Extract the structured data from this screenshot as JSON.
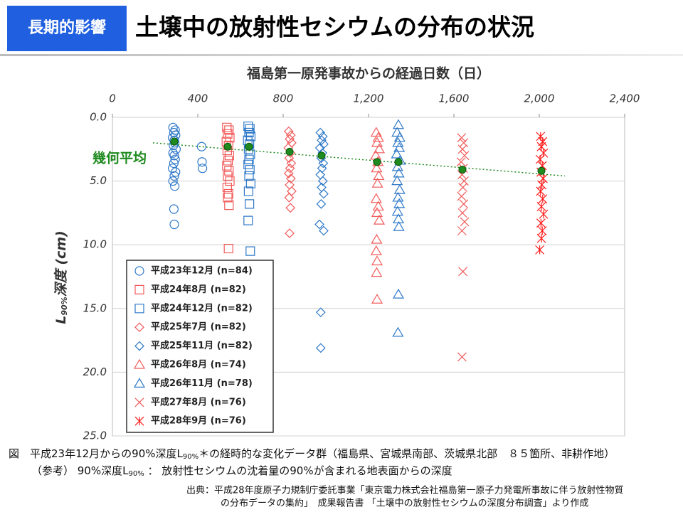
{
  "header": {
    "tag": "長期的影響",
    "title": "土壌中の放射性セシウムの分布の状況"
  },
  "chart_data": {
    "type": "scatter",
    "x_label": "福島第一原発事故からの経過日数（日）",
    "y_label": {
      "main": "L",
      "sub": "90%",
      "rest": "深度 (cm)"
    },
    "xlim": [
      0,
      2400
    ],
    "xticks": [
      0,
      400,
      800,
      {
        "value": 1200,
        "label": "1,200"
      },
      {
        "value": 1600,
        "label": "1,600"
      },
      {
        "value": 2000,
        "label": "2,000"
      },
      {
        "value": 2400,
        "label": "2,400"
      }
    ],
    "ylim": [
      0,
      25
    ],
    "y_inverted": true,
    "yticks": [
      {
        "value": 0,
        "label": "0.0"
      },
      {
        "value": 5,
        "label": "5.0"
      },
      {
        "value": 10,
        "label": "10.0"
      },
      {
        "value": 15,
        "label": "15.0"
      },
      {
        "value": 20,
        "label": "20.0"
      },
      {
        "value": 25,
        "label": "25.0"
      }
    ],
    "grid": true,
    "legend": "lower left",
    "series": [
      {
        "name": "平成23年12月 (n=84)",
        "color": "#2e78c8",
        "marker": "circle",
        "x": [
          284,
          294,
          288,
          296,
          282,
          290,
          292,
          286,
          298,
          284,
          290,
          294,
          288,
          282,
          296,
          290,
          284,
          292,
          288,
          290,
          418,
          420,
          422
        ],
        "values": [
          0.8,
          1.0,
          1.2,
          1.4,
          1.6,
          1.8,
          2.0,
          2.2,
          2.5,
          2.8,
          3.0,
          3.3,
          3.6,
          4.0,
          4.3,
          4.6,
          5.0,
          5.4,
          7.2,
          8.4,
          2.3,
          3.5,
          4.0
        ]
      },
      {
        "name": "平成24年8月 (n=82)",
        "color": "#f25a5a",
        "marker": "square",
        "x": [
          536,
          546,
          540,
          550,
          534,
          544,
          538,
          548,
          542,
          536,
          546,
          540,
          550,
          538,
          544,
          540,
          546,
          544
        ],
        "values": [
          0.8,
          1.0,
          1.3,
          1.6,
          1.9,
          2.2,
          2.6,
          3.0,
          3.4,
          3.8,
          4.2,
          4.6,
          5.0,
          5.5,
          6.0,
          6.3,
          6.9,
          10.3
        ]
      },
      {
        "name": "平成24年12月 (n=82)",
        "color": "#2e78c8",
        "marker": "square",
        "x": [
          636,
          644,
          640,
          648,
          634,
          642,
          638,
          646,
          640,
          636,
          644,
          640,
          648,
          638,
          642,
          636,
          646
        ],
        "values": [
          0.7,
          0.9,
          1.2,
          1.5,
          1.8,
          2.1,
          2.5,
          2.9,
          3.3,
          3.7,
          4.1,
          4.6,
          5.2,
          5.8,
          6.8,
          8.1,
          10.5
        ]
      },
      {
        "name": "平成25年7月 (n=82)",
        "color": "#f25a5a",
        "marker": "diamond",
        "x": [
          826,
          836,
          830,
          840,
          824,
          834,
          828,
          838,
          832,
          826,
          836,
          830,
          840,
          828,
          834,
          830
        ],
        "values": [
          1.1,
          1.4,
          1.7,
          2.0,
          2.4,
          2.8,
          3.2,
          3.6,
          4.0,
          4.4,
          4.8,
          5.3,
          5.8,
          6.3,
          7.1,
          9.1
        ]
      },
      {
        "name": "平成25年11月 (n=82)",
        "color": "#2e78c8",
        "marker": "diamond",
        "x": [
          974,
          986,
          980,
          990,
          972,
          984,
          978,
          988,
          982,
          974,
          986,
          980,
          990,
          978,
          970,
          990,
          976,
          976
        ],
        "values": [
          1.2,
          1.5,
          1.8,
          2.1,
          2.4,
          2.8,
          3.2,
          3.6,
          4.0,
          4.5,
          5.0,
          5.5,
          6.0,
          6.8,
          8.4,
          8.9,
          15.3,
          18.1
        ]
      },
      {
        "name": "平成26年8月 (n=74)",
        "color": "#f25a5a",
        "marker": "triangle",
        "x": [
          1236,
          1246,
          1240,
          1250,
          1234,
          1244,
          1238,
          1248,
          1242,
          1236,
          1246,
          1240,
          1250,
          1238,
          1236,
          1240,
          1238,
          1240
        ],
        "values": [
          1.2,
          1.6,
          2.0,
          2.5,
          3.0,
          3.5,
          4.0,
          4.6,
          5.2,
          6.4,
          7.0,
          7.5,
          8.1,
          9.6,
          10.5,
          11.3,
          12.2,
          14.3
        ]
      },
      {
        "name": "平成26年11月 (n=78)",
        "color": "#2e78c8",
        "marker": "triangle",
        "x": [
          1340,
          1334,
          1346,
          1338,
          1344,
          1332,
          1348,
          1336,
          1342,
          1334,
          1346,
          1338,
          1344,
          1336,
          1340,
          1342,
          1340,
          1338
        ],
        "values": [
          0.6,
          1.2,
          1.6,
          2.0,
          2.4,
          2.9,
          3.4,
          3.9,
          4.4,
          5.0,
          5.7,
          6.3,
          6.8,
          7.4,
          8.0,
          8.6,
          13.9,
          16.9
        ]
      },
      {
        "name": "平成27年8月 (n=76)",
        "color": "#f25a5a",
        "marker": "x",
        "x": [
          1636,
          1646,
          1640,
          1650,
          1634,
          1644,
          1638,
          1648,
          1642,
          1636,
          1646,
          1640,
          1650,
          1638,
          1642,
          1638
        ],
        "values": [
          1.6,
          2.0,
          2.5,
          3.0,
          3.5,
          4.0,
          4.5,
          5.0,
          5.5,
          6.2,
          6.8,
          7.5,
          8.2,
          8.9,
          12.1,
          18.8
        ]
      },
      {
        "name": "平成28年9月 (n=76)",
        "color": "#ff1a1a",
        "marker": "asterisk",
        "x": [
          2006,
          2016,
          2010,
          2020,
          2004,
          2014,
          2008,
          2018,
          2012,
          2006,
          2016,
          2010,
          2020,
          2008,
          2014,
          2010,
          2002
        ],
        "values": [
          1.5,
          1.9,
          2.3,
          2.8,
          3.3,
          3.8,
          4.3,
          4.8,
          5.3,
          5.8,
          6.4,
          7.0,
          7.6,
          8.3,
          8.9,
          9.5,
          10.4
        ]
      }
    ],
    "geometric_mean": {
      "label": "幾何平均",
      "color": "#1f8a1f",
      "x": [
        290,
        540,
        640,
        830,
        980,
        1240,
        1340,
        1640,
        2010
      ],
      "values": [
        1.9,
        2.3,
        2.3,
        2.7,
        3.0,
        3.5,
        3.5,
        4.1,
        4.2
      ],
      "trendline": {
        "x": [
          190,
          2120
        ],
        "values": [
          2.0,
          4.6
        ]
      }
    }
  },
  "captions": [
    {
      "a": "図　平成23年12月からの90%深度L",
      "sub": "90%",
      "b": "＊の経時的な変化データ群（福島県、宮城県南部、茨城県北部　８５箇所、非耕作地）"
    },
    {
      "a": "（参考）  90%深度L",
      "sub": "90%",
      "b": " ：  放射性セシウムの沈着量の90%が含まれる地表面からの深度"
    }
  ],
  "source": [
    "出典：平成28年度原子力規制庁委託事業「東京電力株式会社福島第一原子力発電所事故に伴う放射性物質",
    "の分布データの集約」　成果報告書 「土壌中の放射性セシウムの深度分布調査」より作成"
  ]
}
